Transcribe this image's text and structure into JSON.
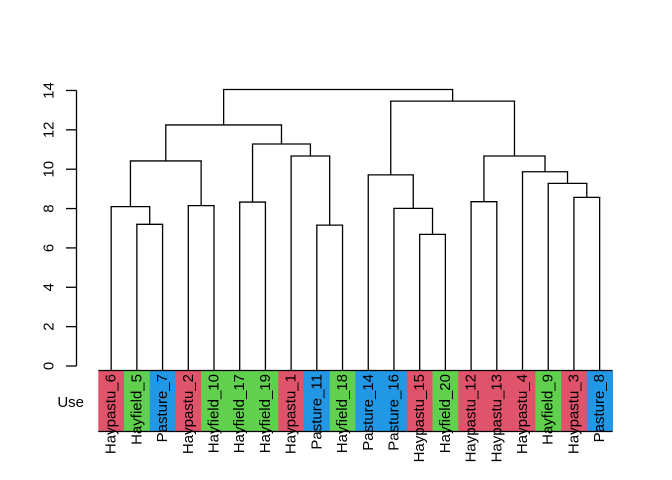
{
  "chart_data": {
    "type": "dendrogram",
    "title": "",
    "row_label": "Use",
    "grid": false,
    "legend_position": "none",
    "ylim": [
      0,
      14
    ],
    "yticks": [
      0,
      2,
      4,
      6,
      8,
      10,
      12,
      14
    ],
    "group_colors": {
      "Haypastu": "#DF536B",
      "Hayfield": "#61D04F",
      "Pasture": "#2297E6"
    },
    "leaves": [
      {
        "label": "Haypastu_6",
        "group": "Haypastu"
      },
      {
        "label": "Hayfield_5",
        "group": "Hayfield"
      },
      {
        "label": "Pasture_7",
        "group": "Pasture"
      },
      {
        "label": "Haypastu_2",
        "group": "Haypastu"
      },
      {
        "label": "Hayfield_10",
        "group": "Hayfield"
      },
      {
        "label": "Hayfield_17",
        "group": "Hayfield"
      },
      {
        "label": "Hayfield_19",
        "group": "Hayfield"
      },
      {
        "label": "Haypastu_1",
        "group": "Haypastu"
      },
      {
        "label": "Pasture_11",
        "group": "Pasture"
      },
      {
        "label": "Hayfield_18",
        "group": "Hayfield"
      },
      {
        "label": "Pasture_14",
        "group": "Pasture"
      },
      {
        "label": "Pasture_16",
        "group": "Pasture"
      },
      {
        "label": "Haypastu_15",
        "group": "Haypastu"
      },
      {
        "label": "Hayfield_20",
        "group": "Hayfield"
      },
      {
        "label": "Haypastu_12",
        "group": "Haypastu"
      },
      {
        "label": "Haypastu_13",
        "group": "Haypastu"
      },
      {
        "label": "Haypastu_4",
        "group": "Haypastu"
      },
      {
        "label": "Hayfield_9",
        "group": "Hayfield"
      },
      {
        "label": "Haypastu_3",
        "group": "Haypastu"
      },
      {
        "label": "Pasture_8",
        "group": "Pasture"
      }
    ],
    "tree": {
      "h": 14.05,
      "c": [
        {
          "h": 12.25,
          "c": [
            {
              "h": 10.42,
              "c": [
                {
                  "h": 8.1,
                  "c": [
                    0,
                    {
                      "h": 7.2,
                      "c": [
                        1,
                        2
                      ]
                    }
                  ]
                },
                {
                  "h": 8.15,
                  "c": [
                    3,
                    4
                  ]
                }
              ]
            },
            {
              "h": 11.28,
              "c": [
                {
                  "h": 8.33,
                  "c": [
                    5,
                    6
                  ]
                },
                {
                  "h": 10.67,
                  "c": [
                    7,
                    {
                      "h": 7.16,
                      "c": [
                        8,
                        9
                      ]
                    }
                  ]
                }
              ]
            }
          ]
        },
        {
          "h": 13.46,
          "c": [
            {
              "h": 9.71,
              "c": [
                10,
                {
                  "h": 8.01,
                  "c": [
                    11,
                    {
                      "h": 6.69,
                      "c": [
                        12,
                        13
                      ]
                    }
                  ]
                }
              ]
            },
            {
              "h": 10.67,
              "c": [
                {
                  "h": 8.35,
                  "c": [
                    14,
                    15
                  ]
                },
                {
                  "h": 9.87,
                  "c": [
                    16,
                    {
                      "h": 9.28,
                      "c": [
                        17,
                        {
                          "h": 8.57,
                          "c": [
                            18,
                            19
                          ]
                        }
                      ]
                    }
                  ]
                }
              ]
            }
          ]
        }
      ]
    }
  }
}
